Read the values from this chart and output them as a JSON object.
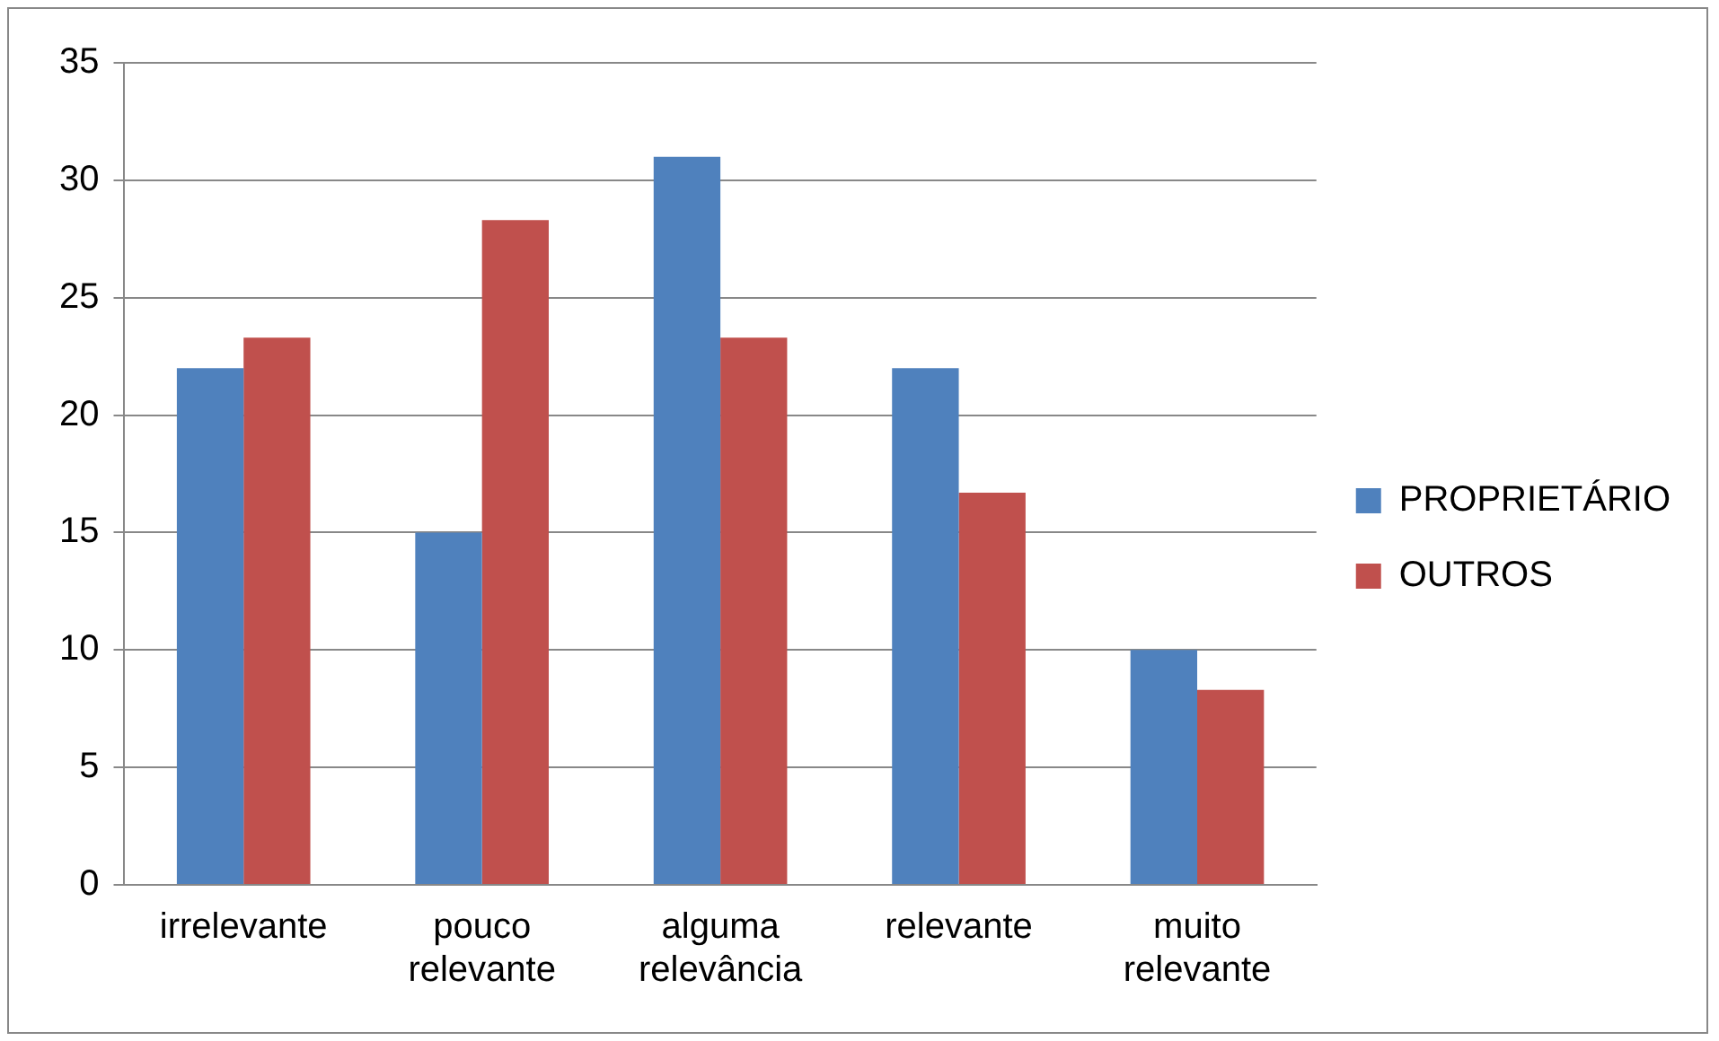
{
  "chart_data": {
    "type": "bar",
    "categories": [
      "irrelevante",
      "pouco relevante",
      "alguma relevância",
      "relevante",
      "muito relevante"
    ],
    "series": [
      {
        "name": "PROPRIETÁRIO",
        "color": "#4f81bd",
        "values": [
          22,
          15,
          31,
          22,
          10
        ]
      },
      {
        "name": "OUTROS",
        "color": "#c0504d",
        "values": [
          23.3,
          28.3,
          23.3,
          16.7,
          8.3
        ]
      }
    ],
    "ylim": [
      0,
      35
    ],
    "yticks": [
      0,
      5,
      10,
      15,
      20,
      25,
      30,
      35
    ],
    "grid": "y",
    "legend": "right"
  }
}
